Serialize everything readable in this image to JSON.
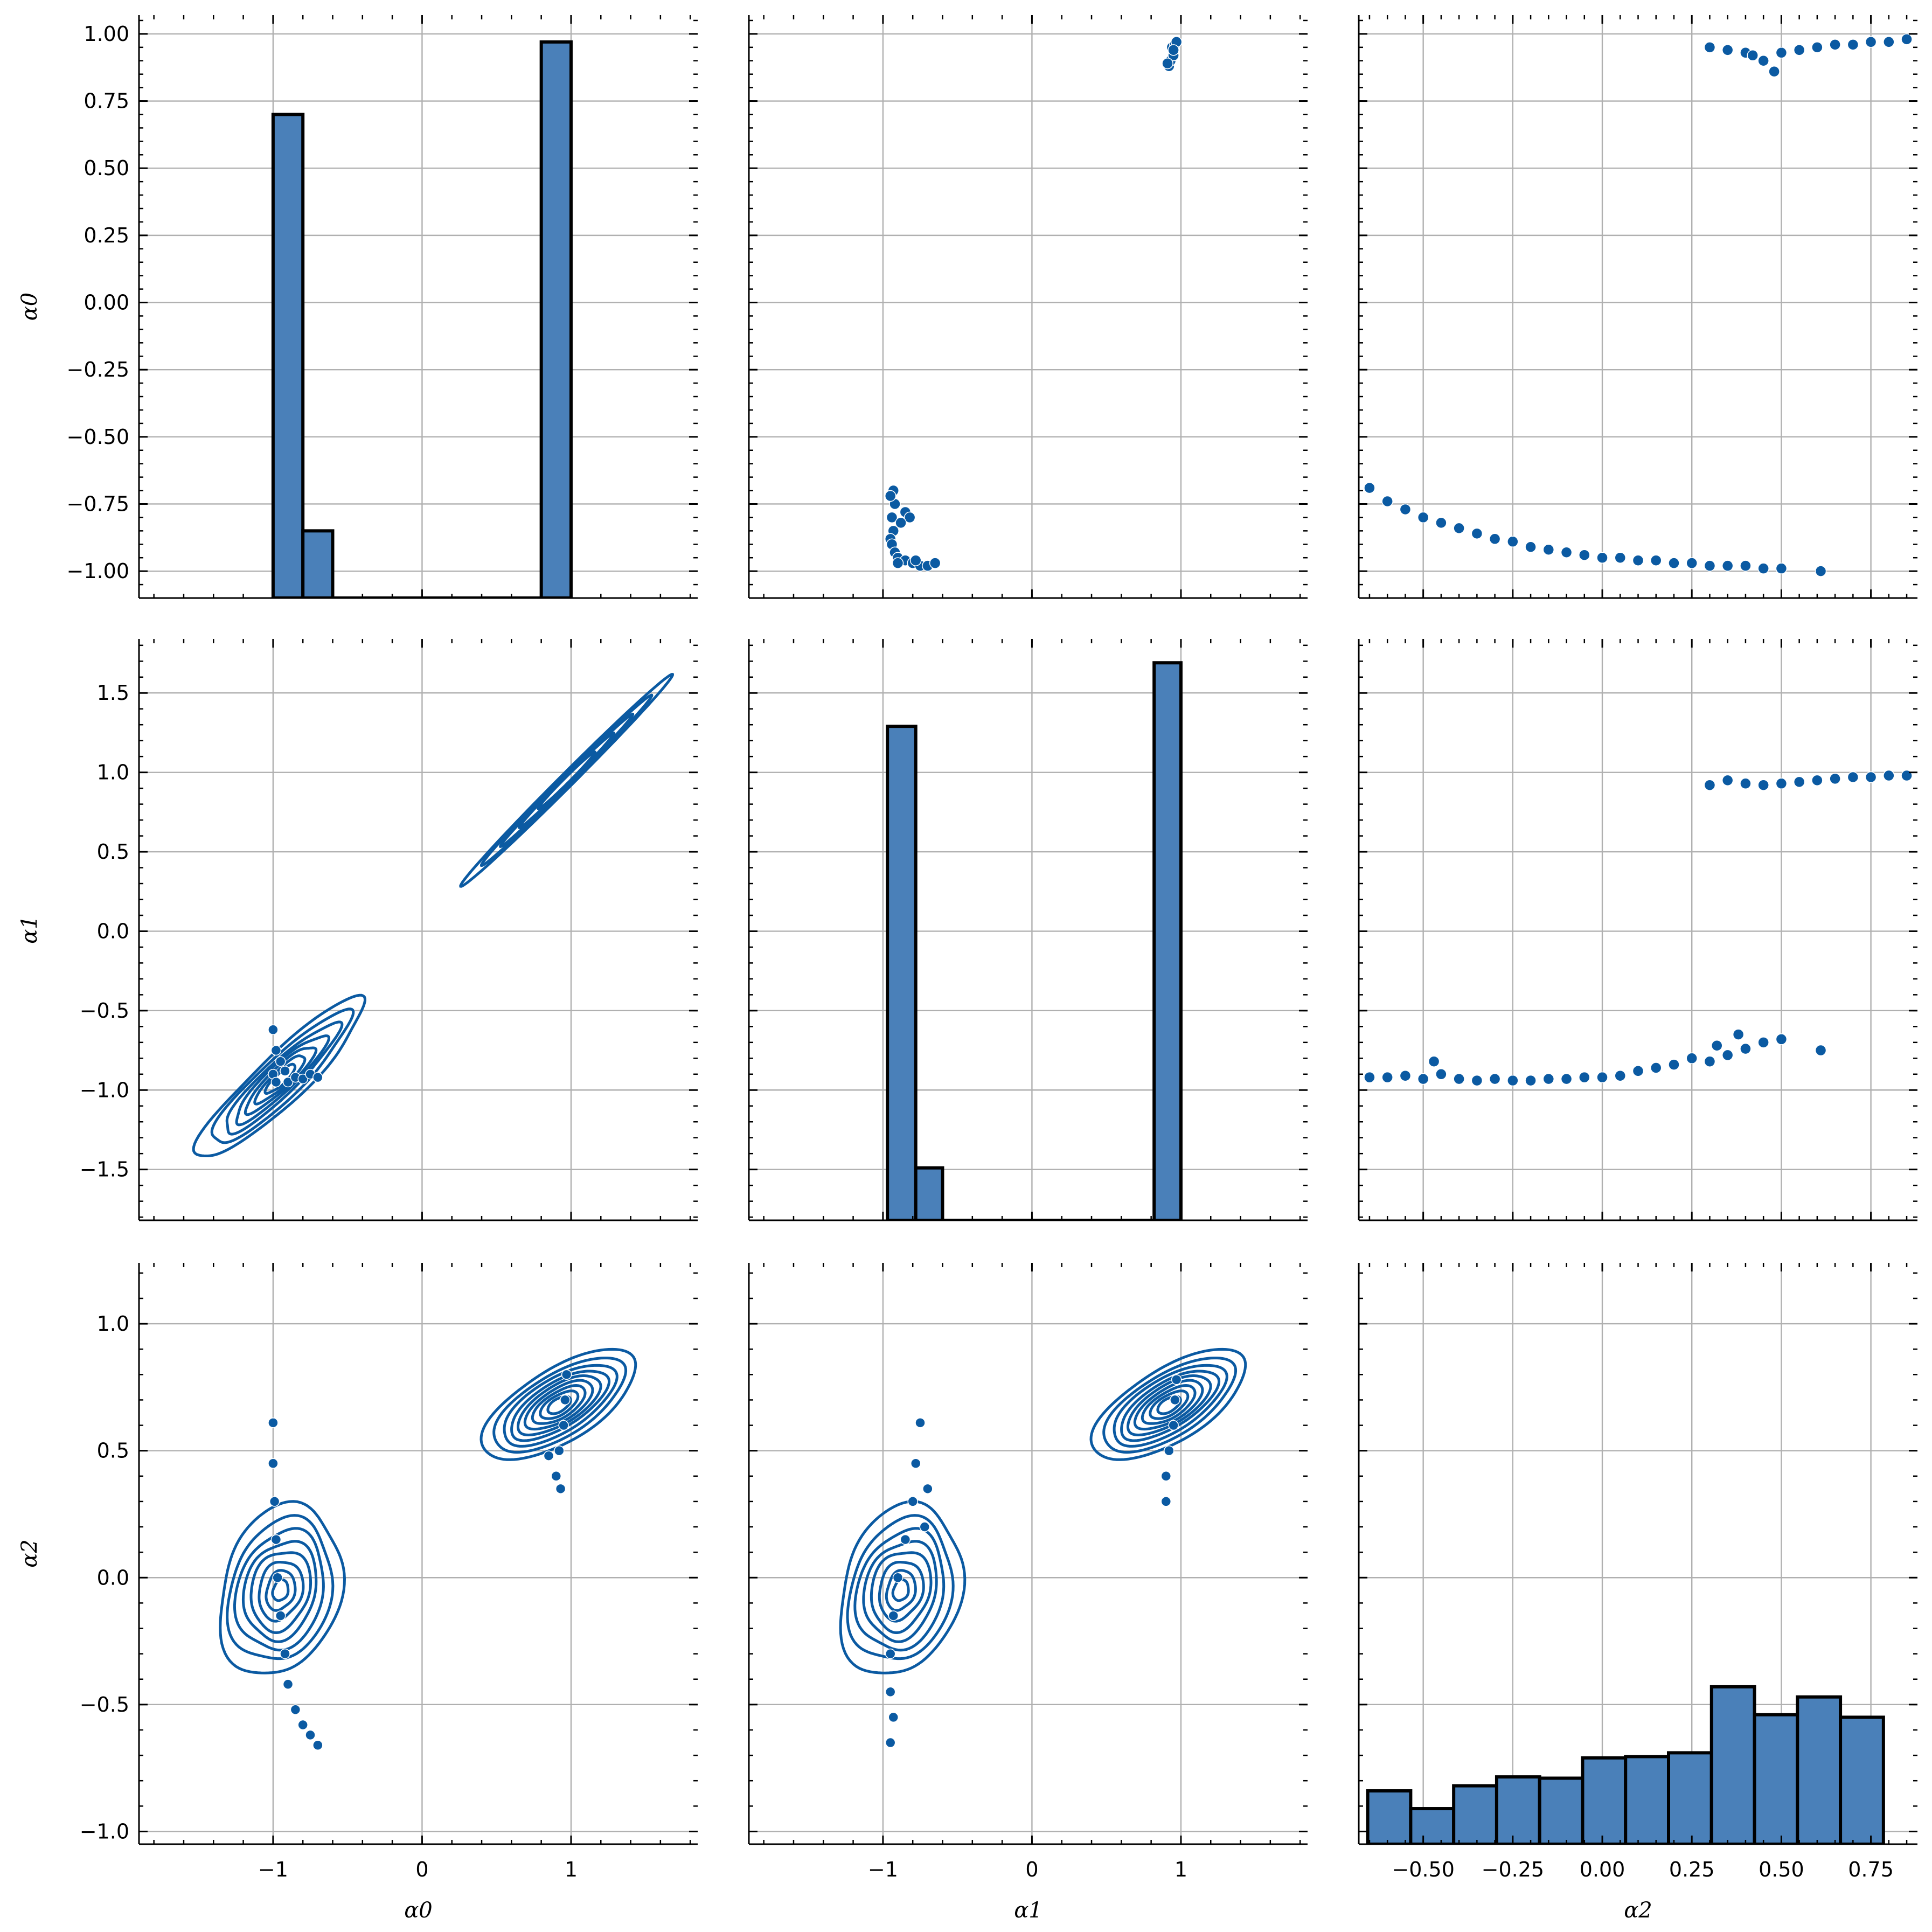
{
  "figure": {
    "variables": [
      "α0",
      "α1",
      "α2"
    ],
    "color": "#0b5aa2",
    "bar_color": "#4a80b9"
  },
  "chart_data": [
    {
      "panel": "α0 vs α0",
      "type": "bar",
      "kind": "histogram",
      "x_variable": "α0",
      "y_axis_shown": "α0",
      "bins": [
        {
          "x0": -1.0,
          "x1": -0.8,
          "top": 0.7
        },
        {
          "x0": -0.8,
          "x1": -0.6,
          "top": -0.85
        },
        {
          "x0": 0.8,
          "x1": 1.0,
          "top": 0.97
        }
      ],
      "baseline": -1.1,
      "xlim": [
        -1.9,
        1.85
      ],
      "ylim": [
        -1.1,
        1.07
      ],
      "xticks": [
        -1,
        0,
        1
      ],
      "yticks": [
        -1.0,
        -0.75,
        -0.5,
        -0.25,
        0.0,
        0.25,
        0.5,
        0.75,
        1.0
      ],
      "ytick_labels": [
        "−1.00",
        "−0.75",
        "−0.50",
        "−0.25",
        "0.00",
        "0.25",
        "0.50",
        "0.75",
        "1.00"
      ],
      "ylabel": "α0"
    },
    {
      "panel": "α1 vs α0",
      "type": "scatter",
      "x_variable": "α1",
      "y_variable": "α0",
      "xlim": [
        -1.9,
        1.85
      ],
      "ylim": [
        -1.1,
        1.07
      ],
      "clusters": [
        {
          "points": [
            [
              -0.92,
              -0.75
            ],
            [
              -0.94,
              -0.8
            ],
            [
              -0.93,
              -0.85
            ],
            [
              -0.95,
              -0.88
            ],
            [
              -0.94,
              -0.9
            ],
            [
              -0.92,
              -0.93
            ],
            [
              -0.9,
              -0.95
            ],
            [
              -0.85,
              -0.96
            ],
            [
              -0.8,
              -0.97
            ],
            [
              -0.75,
              -0.98
            ],
            [
              -0.7,
              -0.98
            ],
            [
              -0.65,
              -0.97
            ],
            [
              -0.93,
              -0.7
            ],
            [
              -0.95,
              -0.72
            ],
            [
              -0.85,
              -0.78
            ],
            [
              -0.82,
              -0.8
            ],
            [
              -0.88,
              -0.82
            ],
            [
              -0.9,
              -0.97
            ],
            [
              -0.78,
              -0.96
            ]
          ]
        },
        {
          "points": [
            [
              0.92,
              0.88
            ],
            [
              0.93,
              0.9
            ],
            [
              0.95,
              0.92
            ],
            [
              0.94,
              0.95
            ],
            [
              0.96,
              0.96
            ],
            [
              0.97,
              0.97
            ],
            [
              0.91,
              0.89
            ],
            [
              0.95,
              0.94
            ]
          ]
        }
      ]
    },
    {
      "panel": "α2 vs α0",
      "type": "scatter",
      "x_variable": "α2",
      "y_variable": "α0",
      "xlim": [
        -0.68,
        0.88
      ],
      "ylim": [
        -1.1,
        1.07
      ],
      "points": [
        [
          -0.65,
          -0.69
        ],
        [
          -0.6,
          -0.74
        ],
        [
          -0.55,
          -0.77
        ],
        [
          -0.5,
          -0.8
        ],
        [
          -0.45,
          -0.82
        ],
        [
          -0.4,
          -0.84
        ],
        [
          -0.35,
          -0.86
        ],
        [
          -0.3,
          -0.88
        ],
        [
          -0.25,
          -0.89
        ],
        [
          -0.2,
          -0.91
        ],
        [
          -0.15,
          -0.92
        ],
        [
          -0.1,
          -0.93
        ],
        [
          -0.05,
          -0.94
        ],
        [
          0.0,
          -0.95
        ],
        [
          0.05,
          -0.95
        ],
        [
          0.1,
          -0.96
        ],
        [
          0.15,
          -0.96
        ],
        [
          0.2,
          -0.97
        ],
        [
          0.25,
          -0.97
        ],
        [
          0.3,
          -0.98
        ],
        [
          0.35,
          -0.98
        ],
        [
          0.4,
          -0.98
        ],
        [
          0.45,
          -0.99
        ],
        [
          0.5,
          -0.99
        ],
        [
          0.61,
          -1.0
        ],
        [
          0.3,
          0.95
        ],
        [
          0.35,
          0.94
        ],
        [
          0.4,
          0.93
        ],
        [
          0.42,
          0.92
        ],
        [
          0.45,
          0.9
        ],
        [
          0.48,
          0.86
        ],
        [
          0.5,
          0.93
        ],
        [
          0.55,
          0.94
        ],
        [
          0.6,
          0.95
        ],
        [
          0.65,
          0.96
        ],
        [
          0.7,
          0.96
        ],
        [
          0.75,
          0.97
        ],
        [
          0.8,
          0.97
        ],
        [
          0.85,
          0.98
        ]
      ]
    },
    {
      "panel": "α0 vs α1",
      "type": "kde_contour",
      "x_variable": "α0",
      "y_variable": "α1",
      "xlim": [
        -1.9,
        1.85
      ],
      "ylim": [
        -1.82,
        1.84
      ],
      "yticks": [
        -1.5,
        -1.0,
        -0.5,
        0.0,
        0.5,
        1.0,
        1.5
      ],
      "ytick_labels": [
        "−1.5",
        "−1.0",
        "−0.5",
        "0.0",
        "0.5",
        "1.0",
        "1.5"
      ],
      "ylabel": "α1",
      "scatter_points": [
        [
          -1.0,
          -0.62
        ],
        [
          -0.98,
          -0.75
        ],
        [
          -0.95,
          -0.82
        ],
        [
          -0.92,
          -0.88
        ],
        [
          -0.9,
          -0.95
        ],
        [
          -0.85,
          -0.92
        ],
        [
          -0.8,
          -0.93
        ],
        [
          -0.75,
          -0.9
        ],
        [
          -0.7,
          -0.92
        ],
        [
          -1.0,
          -0.9
        ],
        [
          -0.98,
          -0.95
        ]
      ]
    },
    {
      "panel": "α1 vs α1",
      "type": "bar",
      "kind": "histogram",
      "x_variable": "α1",
      "bins": [
        {
          "x0": -0.97,
          "x1": -0.78,
          "top": 1.29
        },
        {
          "x0": -0.78,
          "x1": -0.6,
          "top": -1.49
        },
        {
          "x0": 0.82,
          "x1": 1.0,
          "top": 1.69
        }
      ],
      "baseline": -1.82,
      "xlim": [
        -1.9,
        1.85
      ],
      "ylim": [
        -1.82,
        1.84
      ]
    },
    {
      "panel": "α2 vs α1",
      "type": "scatter",
      "x_variable": "α2",
      "y_variable": "α1",
      "xlim": [
        -0.68,
        0.88
      ],
      "ylim": [
        -1.82,
        1.84
      ],
      "points": [
        [
          -0.65,
          -0.92
        ],
        [
          -0.6,
          -0.92
        ],
        [
          -0.55,
          -0.91
        ],
        [
          -0.5,
          -0.93
        ],
        [
          -0.45,
          -0.9
        ],
        [
          -0.47,
          -0.82
        ],
        [
          -0.4,
          -0.93
        ],
        [
          -0.35,
          -0.94
        ],
        [
          -0.3,
          -0.93
        ],
        [
          -0.25,
          -0.94
        ],
        [
          -0.2,
          -0.94
        ],
        [
          -0.15,
          -0.93
        ],
        [
          -0.1,
          -0.93
        ],
        [
          -0.05,
          -0.92
        ],
        [
          0.0,
          -0.92
        ],
        [
          0.05,
          -0.91
        ],
        [
          0.1,
          -0.88
        ],
        [
          0.15,
          -0.86
        ],
        [
          0.2,
          -0.84
        ],
        [
          0.25,
          -0.8
        ],
        [
          0.3,
          -0.82
        ],
        [
          0.32,
          -0.72
        ],
        [
          0.35,
          -0.78
        ],
        [
          0.38,
          -0.65
        ],
        [
          0.4,
          -0.74
        ],
        [
          0.45,
          -0.7
        ],
        [
          0.5,
          -0.68
        ],
        [
          0.61,
          -0.75
        ],
        [
          0.3,
          0.92
        ],
        [
          0.35,
          0.95
        ],
        [
          0.4,
          0.93
        ],
        [
          0.45,
          0.92
        ],
        [
          0.5,
          0.93
        ],
        [
          0.55,
          0.94
        ],
        [
          0.6,
          0.95
        ],
        [
          0.65,
          0.96
        ],
        [
          0.7,
          0.97
        ],
        [
          0.75,
          0.97
        ],
        [
          0.8,
          0.98
        ],
        [
          0.85,
          0.98
        ]
      ]
    },
    {
      "panel": "α0 vs α2",
      "type": "kde_contour",
      "x_variable": "α0",
      "y_variable": "α2",
      "xlim": [
        -1.9,
        1.85
      ],
      "ylim": [
        -1.05,
        1.24
      ],
      "xticks": [
        -1,
        0,
        1
      ],
      "xtick_labels": [
        "−1",
        "0",
        "1"
      ],
      "xlabel": "α0",
      "yticks": [
        -1.0,
        -0.5,
        0.0,
        0.5,
        1.0
      ],
      "ytick_labels": [
        "−1.0",
        "−0.5",
        "0.0",
        "0.5",
        "1.0"
      ],
      "ylabel": "α2",
      "scatter_points": [
        [
          -1.0,
          0.61
        ],
        [
          -1.0,
          0.45
        ],
        [
          -0.99,
          0.3
        ],
        [
          -0.98,
          0.15
        ],
        [
          -0.97,
          0.0
        ],
        [
          -0.95,
          -0.15
        ],
        [
          -0.92,
          -0.3
        ],
        [
          -0.9,
          -0.42
        ],
        [
          -0.85,
          -0.52
        ],
        [
          -0.8,
          -0.58
        ],
        [
          -0.75,
          -0.62
        ],
        [
          -0.7,
          -0.66
        ],
        [
          0.9,
          0.4
        ],
        [
          0.92,
          0.5
        ],
        [
          0.95,
          0.6
        ],
        [
          0.96,
          0.7
        ],
        [
          0.97,
          0.8
        ],
        [
          0.85,
          0.48
        ],
        [
          0.93,
          0.35
        ]
      ]
    },
    {
      "panel": "α1 vs α2",
      "type": "kde_contour",
      "x_variable": "α1",
      "y_variable": "α2",
      "xlim": [
        -1.9,
        1.85
      ],
      "ylim": [
        -1.05,
        1.24
      ],
      "xticks": [
        -1,
        0,
        1
      ],
      "xtick_labels": [
        "−1",
        "0",
        "1"
      ],
      "xlabel": "α1",
      "scatter_points": [
        [
          -0.75,
          0.61
        ],
        [
          -0.78,
          0.45
        ],
        [
          -0.8,
          0.3
        ],
        [
          -0.85,
          0.15
        ],
        [
          -0.9,
          0.0
        ],
        [
          -0.93,
          -0.15
        ],
        [
          -0.95,
          -0.3
        ],
        [
          -0.95,
          -0.45
        ],
        [
          -0.93,
          -0.55
        ],
        [
          -0.95,
          -0.65
        ],
        [
          -0.7,
          0.35
        ],
        [
          -0.72,
          0.2
        ],
        [
          0.9,
          0.4
        ],
        [
          0.92,
          0.5
        ],
        [
          0.95,
          0.6
        ],
        [
          0.96,
          0.7
        ],
        [
          0.97,
          0.78
        ],
        [
          0.9,
          0.3
        ]
      ]
    },
    {
      "panel": "α2 vs α2",
      "type": "bar",
      "kind": "histogram",
      "x_variable": "α2",
      "bins": [
        {
          "x0": -0.655,
          "x1": -0.535,
          "top": -0.84
        },
        {
          "x0": -0.535,
          "x1": -0.415,
          "top": -0.91
        },
        {
          "x0": -0.415,
          "x1": -0.295,
          "top": -0.82
        },
        {
          "x0": -0.295,
          "x1": -0.175,
          "top": -0.785
        },
        {
          "x0": -0.175,
          "x1": -0.055,
          "top": -0.79
        },
        {
          "x0": -0.055,
          "x1": 0.065,
          "top": -0.71
        },
        {
          "x0": 0.065,
          "x1": 0.185,
          "top": -0.705
        },
        {
          "x0": 0.185,
          "x1": 0.305,
          "top": -0.69
        },
        {
          "x0": 0.305,
          "x1": 0.425,
          "top": -0.43
        },
        {
          "x0": 0.425,
          "x1": 0.545,
          "top": -0.54
        },
        {
          "x0": 0.545,
          "x1": 0.665,
          "top": -0.47
        },
        {
          "x0": 0.665,
          "x1": 0.785,
          "top": -0.55
        }
      ],
      "baseline": -1.05,
      "xlim": [
        -0.68,
        0.88
      ],
      "ylim": [
        -1.05,
        1.24
      ],
      "xticks": [
        -0.5,
        -0.25,
        0.0,
        0.25,
        0.5,
        0.75
      ],
      "xtick_labels": [
        "−0.50",
        "−0.25",
        "0.00",
        "0.25",
        "0.50",
        "0.75"
      ],
      "xlabel": "α2"
    }
  ]
}
